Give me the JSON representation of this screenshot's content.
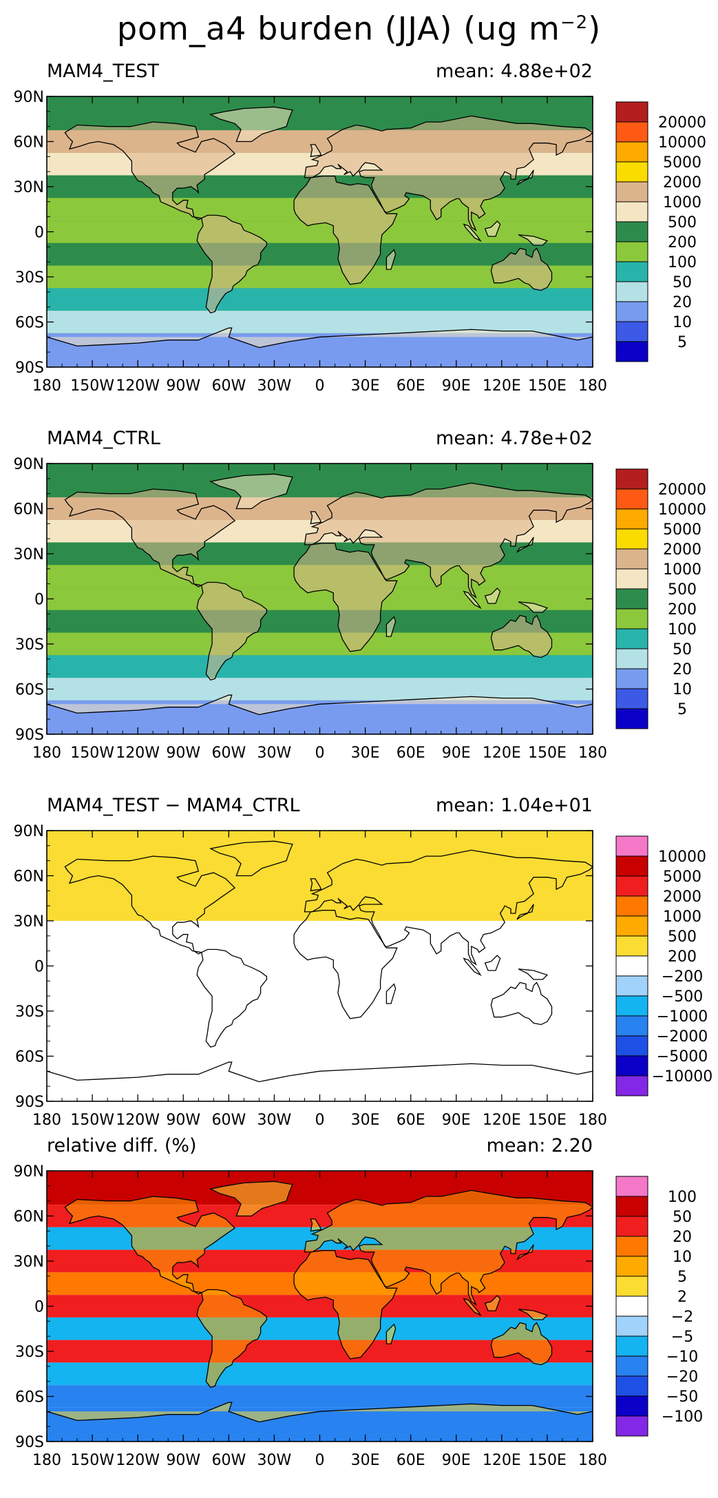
{
  "figure": {
    "title_main": "pom_a4 burden (JJA) (ug m",
    "title_sup": "−2",
    "title_close": ")"
  },
  "x_ticks": [
    "180",
    "150W",
    "120W",
    "90W",
    "60W",
    "30W",
    "0",
    "30E",
    "60E",
    "90E",
    "120E",
    "150E",
    "180"
  ],
  "y_ticks": [
    "90N",
    "60N",
    "30N",
    "0",
    "30S",
    "60S",
    "90S"
  ],
  "colors": {
    "burden": [
      "#0a00c8",
      "#3c5ae6",
      "#789bf0",
      "#b4e1e6",
      "#28b4aa",
      "#8cc83c",
      "#2d8c4b",
      "#f5e6c3",
      "#dcb48c",
      "#fadc00",
      "#ffaa00",
      "#ff5a14",
      "#b41e1e"
    ],
    "diff": [
      "#8228e6",
      "#0a00c8",
      "#1e50e6",
      "#2882f0",
      "#14b4f0",
      "#a0d2fa",
      "#ffffff",
      "#fadc32",
      "#ffaa00",
      "#ff7800",
      "#f01e1e",
      "#c80000",
      "#f578c8"
    ]
  },
  "chart_data": [
    {
      "type": "heatmap",
      "title": "MAM4_TEST",
      "mean_label": "mean: 4.88e+02",
      "mean": 488,
      "units": "ug m-2",
      "season": "JJA",
      "xlim": [
        -180,
        180
      ],
      "ylim": [
        -90,
        90
      ],
      "levels": [
        "20000",
        "10000",
        "5000",
        "2000",
        "1000",
        "500",
        "200",
        "100",
        "50",
        "20",
        "10",
        "5"
      ],
      "latitude_band_values": [
        {
          "lat": 75,
          "value": 200
        },
        {
          "lat": 60,
          "value": 1000
        },
        {
          "lat": 45,
          "value": 500
        },
        {
          "lat": 30,
          "value": 200
        },
        {
          "lat": 15,
          "value": 100
        },
        {
          "lat": 0,
          "value": 100
        },
        {
          "lat": -15,
          "value": 200
        },
        {
          "lat": -30,
          "value": 100
        },
        {
          "lat": -45,
          "value": 50
        },
        {
          "lat": -60,
          "value": 20
        },
        {
          "lat": -75,
          "value": 10
        }
      ]
    },
    {
      "type": "heatmap",
      "title": "MAM4_CTRL",
      "mean_label": "mean: 4.78e+02",
      "mean": 478,
      "units": "ug m-2",
      "season": "JJA",
      "xlim": [
        -180,
        180
      ],
      "ylim": [
        -90,
        90
      ],
      "levels": [
        "20000",
        "10000",
        "5000",
        "2000",
        "1000",
        "500",
        "200",
        "100",
        "50",
        "20",
        "10",
        "5"
      ],
      "latitude_band_values": [
        {
          "lat": 75,
          "value": 200
        },
        {
          "lat": 60,
          "value": 1000
        },
        {
          "lat": 45,
          "value": 500
        },
        {
          "lat": 30,
          "value": 200
        },
        {
          "lat": 15,
          "value": 100
        },
        {
          "lat": 0,
          "value": 100
        },
        {
          "lat": -15,
          "value": 200
        },
        {
          "lat": -30,
          "value": 100
        },
        {
          "lat": -45,
          "value": 50
        },
        {
          "lat": -60,
          "value": 20
        },
        {
          "lat": -75,
          "value": 10
        }
      ]
    },
    {
      "type": "heatmap",
      "title": "MAM4_TEST − MAM4_CTRL",
      "mean_label": "mean: 1.04e+01",
      "mean": 10.4,
      "units": "ug m-2",
      "season": "JJA",
      "xlim": [
        -180,
        180
      ],
      "ylim": [
        -90,
        90
      ],
      "levels": [
        "10000",
        "5000",
        "2000",
        "1000",
        "500",
        "200",
        "−200",
        "−500",
        "−1000",
        "−2000",
        "−5000",
        "−10000"
      ],
      "latitude_band_values": [
        {
          "lat": 60,
          "value": 200
        },
        {
          "lat": 0,
          "value": 0
        },
        {
          "lat": -60,
          "value": 0
        }
      ]
    },
    {
      "type": "heatmap",
      "title": "relative diff. (%)",
      "mean_label": "mean:  2.20",
      "mean": 2.2,
      "units": "%",
      "season": "JJA",
      "xlim": [
        -180,
        180
      ],
      "ylim": [
        -90,
        90
      ],
      "levels": [
        "100",
        "50",
        "20",
        "10",
        "5",
        "2",
        "−2",
        "−5",
        "−10",
        "−20",
        "−50",
        "−100"
      ],
      "latitude_band_values": [
        {
          "lat": 75,
          "value": 50
        },
        {
          "lat": 60,
          "value": 20
        },
        {
          "lat": 45,
          "value": -10
        },
        {
          "lat": 30,
          "value": 20
        },
        {
          "lat": 15,
          "value": 10
        },
        {
          "lat": 0,
          "value": 20
        },
        {
          "lat": -15,
          "value": -10
        },
        {
          "lat": -30,
          "value": 20
        },
        {
          "lat": -45,
          "value": -10
        },
        {
          "lat": -60,
          "value": -20
        },
        {
          "lat": -75,
          "value": -20
        }
      ]
    }
  ]
}
